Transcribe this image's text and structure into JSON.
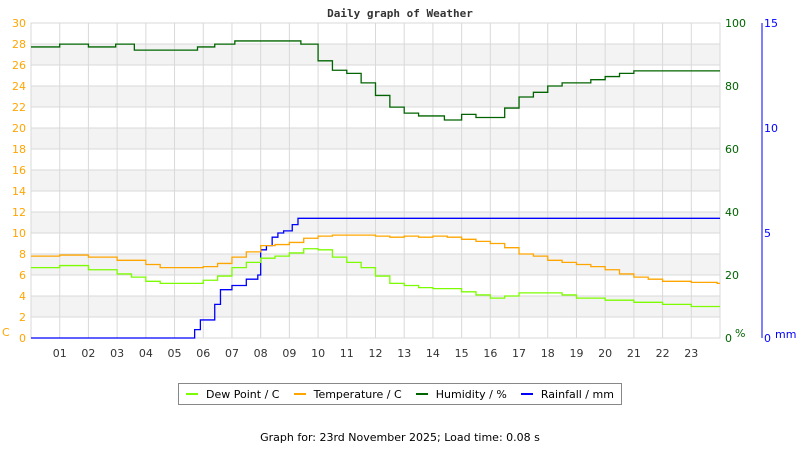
{
  "chart_data": {
    "type": "line",
    "title": "Daily graph of Weather",
    "x_ticks": [
      "01",
      "02",
      "03",
      "04",
      "05",
      "06",
      "07",
      "08",
      "09",
      "10",
      "11",
      "12",
      "13",
      "14",
      "15",
      "16",
      "17",
      "18",
      "19",
      "20",
      "21",
      "22",
      "23"
    ],
    "xlim": [
      0,
      24
    ],
    "left_axis": {
      "unit": "C",
      "ylim": [
        0,
        30
      ],
      "ticks": [
        "0",
        "2",
        "4",
        "6",
        "8",
        "10",
        "12",
        "14",
        "16",
        "18",
        "20",
        "22",
        "24",
        "26",
        "28",
        "30"
      ],
      "color": "#ffa500"
    },
    "right_axis": {
      "unit": "%",
      "ylim": [
        0,
        100
      ],
      "ticks": [
        "0",
        "20",
        "40",
        "60",
        "80",
        "100"
      ],
      "color": "#006400"
    },
    "rain_axis": {
      "unit": "mm",
      "ylim": [
        0,
        15
      ],
      "ticks": [
        "0",
        "5",
        "10",
        "15"
      ],
      "color": "#0000ff"
    },
    "grid": true,
    "legend_placement": "bottom",
    "series": [
      {
        "name": "Dew Point / C",
        "axis": "left",
        "color": "#7cfc00",
        "x": [
          0,
          1,
          2,
          3,
          3.5,
          4,
          4.5,
          5.5,
          6,
          6.5,
          7,
          7.5,
          8,
          8.5,
          9,
          9.5,
          10,
          10.5,
          11,
          11.5,
          12,
          12.5,
          13,
          13.5,
          14,
          15,
          15.5,
          16,
          16.5,
          17,
          18,
          18.5,
          19,
          20,
          21,
          22,
          23,
          23.9
        ],
        "y": [
          6.7,
          6.9,
          6.5,
          6.1,
          5.8,
          5.4,
          5.2,
          5.2,
          5.5,
          5.9,
          6.7,
          7.2,
          7.6,
          7.8,
          8.1,
          8.5,
          8.4,
          7.7,
          7.2,
          6.7,
          5.9,
          5.2,
          5.0,
          4.8,
          4.7,
          4.4,
          4.1,
          3.8,
          4.0,
          4.3,
          4.3,
          4.1,
          3.8,
          3.6,
          3.4,
          3.2,
          3.0,
          3.0
        ]
      },
      {
        "name": "Temperature / C",
        "axis": "left",
        "color": "#ffa500",
        "x": [
          0,
          1,
          2,
          3,
          4,
          4.5,
          5.5,
          6,
          6.5,
          7,
          7.5,
          8,
          8.5,
          9,
          9.5,
          10,
          10.5,
          11,
          12,
          12.5,
          13,
          13.5,
          14,
          14.5,
          15,
          15.5,
          16,
          16.5,
          17,
          17.5,
          18,
          18.5,
          19,
          19.5,
          20,
          20.5,
          21,
          21.5,
          22,
          23,
          23.9
        ],
        "y": [
          7.8,
          7.9,
          7.7,
          7.4,
          7.0,
          6.7,
          6.7,
          6.8,
          7.1,
          7.7,
          8.2,
          8.8,
          8.9,
          9.1,
          9.5,
          9.7,
          9.8,
          9.8,
          9.7,
          9.6,
          9.7,
          9.6,
          9.7,
          9.6,
          9.4,
          9.2,
          9.0,
          8.6,
          8.0,
          7.8,
          7.4,
          7.2,
          7.0,
          6.8,
          6.5,
          6.1,
          5.8,
          5.6,
          5.4,
          5.3,
          5.2
        ]
      },
      {
        "name": "Humidity / %",
        "axis": "right",
        "color": "#006400",
        "x": [
          0,
          1,
          2,
          2.95,
          3.6,
          5.8,
          6.4,
          7.1,
          9.4,
          9.9,
          10,
          10.5,
          11,
          11.5,
          12,
          12.5,
          13,
          13.5,
          14,
          14.4,
          15,
          15.5,
          16,
          16.5,
          17,
          17.5,
          18,
          18.5,
          19,
          19.5,
          20,
          20.5,
          21,
          23.9
        ],
        "y": [
          92.4,
          93.3,
          92.4,
          93.3,
          91.4,
          92.4,
          93.3,
          94.3,
          93.3,
          93.3,
          88,
          85,
          84,
          81,
          77,
          73.3,
          71.4,
          70.5,
          70.5,
          69.2,
          71,
          70,
          70,
          73,
          76.5,
          78,
          80,
          81,
          81,
          82,
          83,
          84,
          84.8,
          84.8
        ]
      },
      {
        "name": "Rainfall / mm",
        "axis": "rain",
        "color": "#0000ff",
        "x": [
          0,
          5.6,
          5.7,
          5.9,
          6.2,
          6.4,
          6.6,
          7.0,
          7.5,
          7.9,
          8.0,
          8.2,
          8.4,
          8.6,
          8.8,
          9.1,
          9.3,
          23.9
        ],
        "y": [
          0,
          0,
          0.4,
          0.86,
          0.86,
          1.6,
          2.3,
          2.5,
          2.8,
          3.0,
          4.2,
          4.4,
          4.8,
          5.0,
          5.1,
          5.4,
          5.7,
          5.7
        ]
      }
    ]
  },
  "footer": "Graph for: 23rd November 2025; Load time: 0.08 s"
}
